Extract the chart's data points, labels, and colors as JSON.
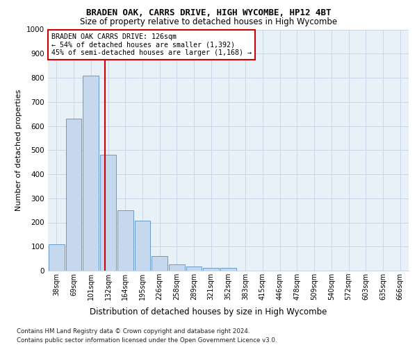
{
  "title": "BRADEN OAK, CARRS DRIVE, HIGH WYCOMBE, HP12 4BT",
  "subtitle": "Size of property relative to detached houses in High Wycombe",
  "xlabel": "Distribution of detached houses by size in High Wycombe",
  "ylabel": "Number of detached properties",
  "footnote1": "Contains HM Land Registry data © Crown copyright and database right 2024.",
  "footnote2": "Contains public sector information licensed under the Open Government Licence v3.0.",
  "annotation_title": "BRADEN OAK CARRS DRIVE: 126sqm",
  "annotation_line1": "← 54% of detached houses are smaller (1,392)",
  "annotation_line2": "45% of semi-detached houses are larger (1,168) →",
  "bar_color": "#c5d8ed",
  "bar_edge_color": "#5a8fc0",
  "highlight_line_color": "#cc0000",
  "categories": [
    "38sqm",
    "69sqm",
    "101sqm",
    "132sqm",
    "164sqm",
    "195sqm",
    "226sqm",
    "258sqm",
    "289sqm",
    "321sqm",
    "352sqm",
    "383sqm",
    "415sqm",
    "446sqm",
    "478sqm",
    "509sqm",
    "540sqm",
    "572sqm",
    "603sqm",
    "635sqm",
    "666sqm"
  ],
  "values": [
    110,
    630,
    810,
    480,
    250,
    207,
    60,
    25,
    18,
    12,
    12,
    0,
    0,
    0,
    0,
    0,
    0,
    0,
    0,
    0,
    0
  ],
  "ylim": [
    0,
    1000
  ],
  "yticks": [
    0,
    100,
    200,
    300,
    400,
    500,
    600,
    700,
    800,
    900,
    1000
  ],
  "grid_color": "#c8d8e8",
  "bg_color": "#e8f0f8"
}
